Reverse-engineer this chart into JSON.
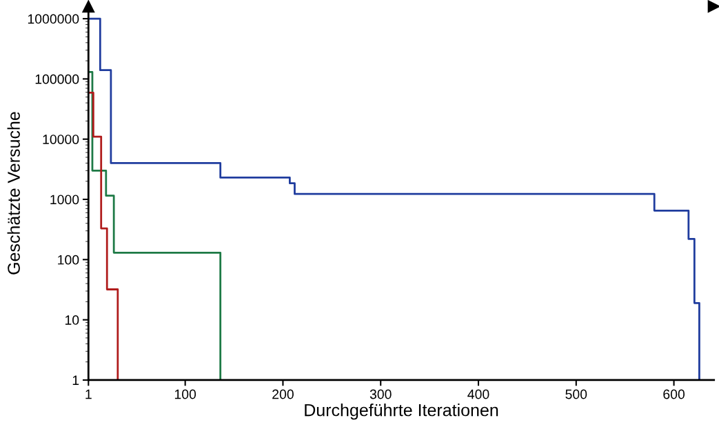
{
  "chart_data": {
    "type": "step",
    "xlabel": "Durchgeführte Iterationen",
    "ylabel": "Geschätzte Versuche",
    "log": "y",
    "grid": false,
    "legend": false,
    "xlim": [
      1,
      641
    ],
    "xticks": [
      1,
      100,
      200,
      300,
      400,
      500,
      600
    ],
    "ylim": [
      1,
      1600000
    ],
    "yticks": [
      1,
      10,
      100,
      1000,
      10000,
      100000,
      1000000
    ],
    "series": [
      {
        "color": "#1f3c9e",
        "x": [
          1,
          13,
          24,
          136,
          207,
          212,
          580,
          615,
          621,
          626
        ],
        "values": [
          1000000,
          140000,
          4000,
          2300,
          1850,
          1230,
          650,
          220,
          19,
          1
        ]
      },
      {
        "color": "#1e7a46",
        "x": [
          1,
          5,
          19,
          27,
          136
        ],
        "values": [
          130000,
          3000,
          1150,
          130,
          1
        ]
      },
      {
        "color": "#b01c1c",
        "x": [
          1,
          6,
          14,
          20,
          31
        ],
        "values": [
          59000,
          11000,
          330,
          32,
          1
        ]
      }
    ]
  }
}
